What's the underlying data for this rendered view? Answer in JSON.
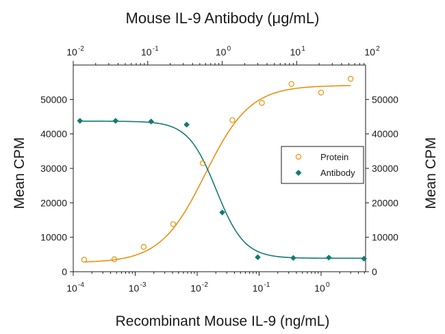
{
  "chart_data": {
    "type": "scatter",
    "title": "Mouse IL-9 Antibody (μg/mL)",
    "xlabel": "Recombinant Mouse IL-9 (ng/mL)",
    "ylabel": "Mean CPM",
    "ylabel_right": "Mean CPM",
    "x_bottom": {
      "scale": "log",
      "range": [
        0.0001,
        5
      ],
      "ticks": [
        {
          "base": "10",
          "exp": "-4",
          "value": 0.0001
        },
        {
          "base": "10",
          "exp": "-3",
          "value": 0.001
        },
        {
          "base": "10",
          "exp": "-2",
          "value": 0.01
        },
        {
          "base": "10",
          "exp": "-1",
          "value": 0.1
        },
        {
          "base": "10",
          "exp": "0",
          "value": 1
        }
      ]
    },
    "x_top": {
      "scale": "log",
      "range": [
        0.01,
        100
      ],
      "ticks": [
        {
          "base": "10",
          "exp": "-2",
          "value": 0.01
        },
        {
          "base": "10",
          "exp": "-1",
          "value": 0.1
        },
        {
          "base": "10",
          "exp": "0",
          "value": 1
        },
        {
          "base": "10",
          "exp": "1",
          "value": 10
        },
        {
          "base": "10",
          "exp": "2",
          "value": 100
        }
      ]
    },
    "y": {
      "range": [
        0,
        60000
      ],
      "ticks": [
        0,
        10000,
        20000,
        30000,
        40000,
        50000
      ]
    },
    "legend": {
      "position": "right-middle",
      "entries": [
        "Protein",
        "Antibody"
      ]
    },
    "series": [
      {
        "name": "Protein",
        "axis": "bottom",
        "color": "#e8900f",
        "marker": "open-circle",
        "x": [
          0.00015,
          0.00046,
          0.00137,
          0.0041,
          0.0123,
          0.037,
          0.111,
          0.333,
          1.0,
          3.0
        ],
        "y": [
          3500,
          3600,
          7200,
          13800,
          31500,
          44000,
          49000,
          54500,
          52000,
          56000
        ],
        "fit": {
          "bottom": 2600,
          "top": 54100,
          "ec50": 0.0135,
          "hill": 1.2
        }
      },
      {
        "name": "Antibody",
        "axis": "top",
        "color": "#137a72",
        "marker": "filled-diamond",
        "x": [
          0.0123,
          0.037,
          0.111,
          0.333,
          1.0,
          3.0,
          9.0,
          27.0,
          80.0
        ],
        "y": [
          43800,
          43800,
          43600,
          42700,
          17200,
          4200,
          4000,
          4100,
          3800
        ],
        "fit": {
          "bottom": 3900,
          "top": 43700,
          "ec50": 0.83,
          "hill": -2.3
        }
      }
    ]
  }
}
